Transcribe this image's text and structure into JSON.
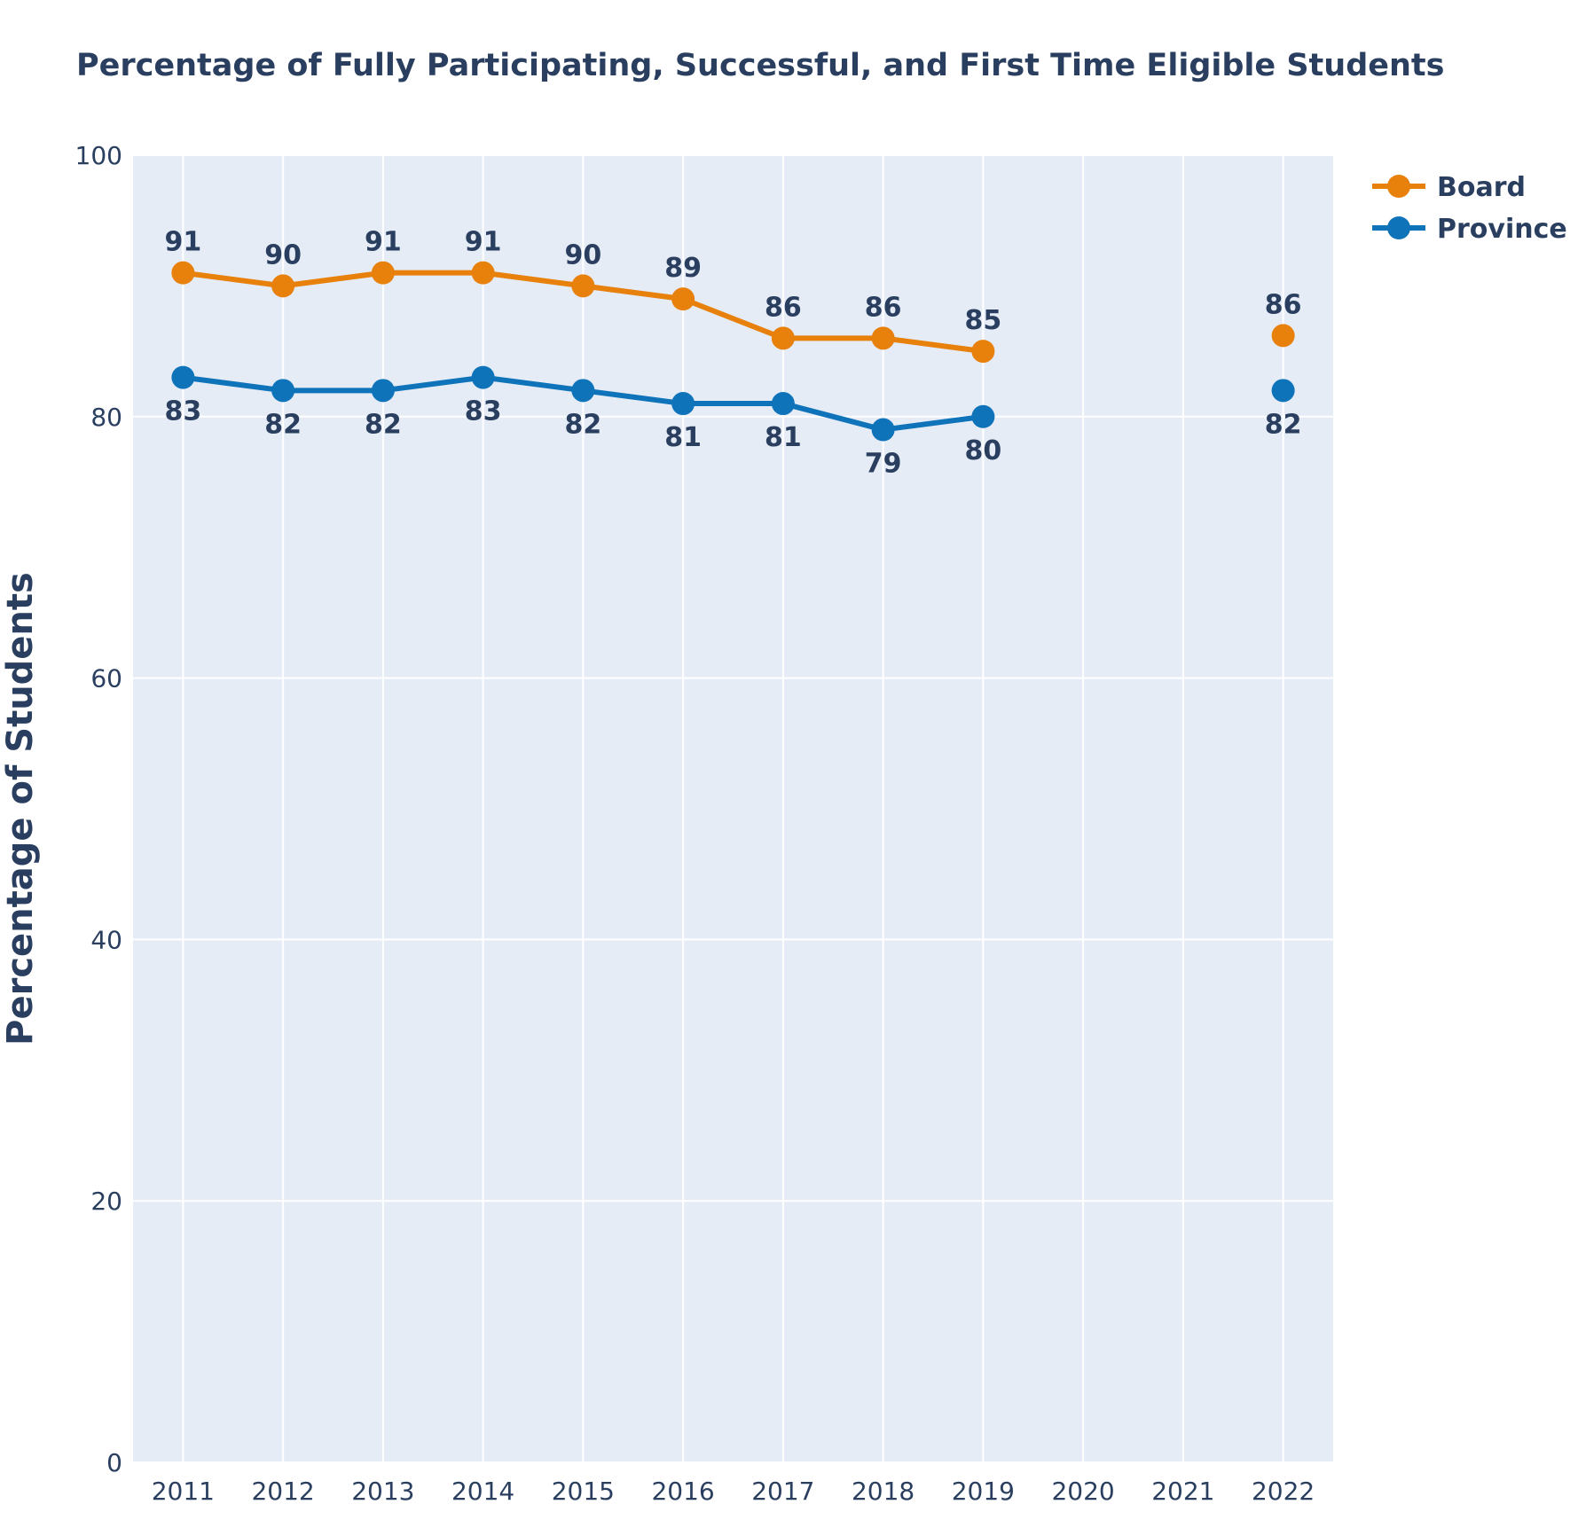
{
  "chart_data": {
    "type": "line",
    "title": "Percentage of Fully Participating, Successful, and First Time Eligible Students",
    "xlabel": "",
    "ylabel": "Percentage of Students",
    "x": [
      "2011",
      "2012",
      "2013",
      "2014",
      "2015",
      "2016",
      "2017",
      "2018",
      "2019",
      "2020",
      "2021",
      "2022"
    ],
    "ylim": [
      0,
      100
    ],
    "yticks": [
      0,
      20,
      40,
      60,
      80,
      100
    ],
    "grid": true,
    "legend_position": "top-right",
    "series": [
      {
        "name": "Board",
        "color": "#e8800c",
        "label_position": "above",
        "values": [
          91,
          90,
          91,
          91,
          90,
          89,
          86,
          86,
          85,
          null,
          null,
          86.2
        ],
        "labels": [
          "91",
          "90",
          "91",
          "91",
          "90",
          "89",
          "86",
          "86",
          "85",
          null,
          null,
          "86"
        ]
      },
      {
        "name": "Province",
        "color": "#0f73ba",
        "label_position": "below",
        "values": [
          83,
          82,
          82,
          83,
          82,
          81,
          81,
          79,
          80,
          null,
          null,
          82
        ],
        "labels": [
          "83",
          "82",
          "82",
          "83",
          "82",
          "81",
          "81",
          "79",
          "80",
          null,
          null,
          "82"
        ]
      }
    ]
  }
}
